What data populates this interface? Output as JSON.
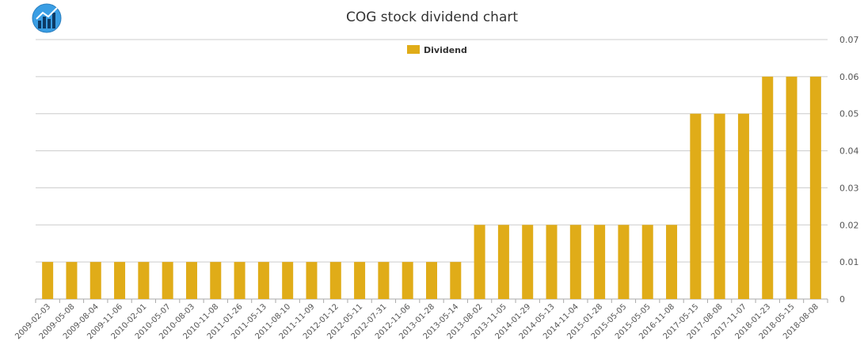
{
  "title": "COG stock dividend chart",
  "logo_icon": "chart-logo-icon",
  "colors": {
    "bar": "#E0AC18",
    "grid": "#cccccc",
    "axis": "#aaaaaa"
  },
  "chart_data": {
    "type": "bar",
    "title": "COG stock dividend chart",
    "xlabel": "",
    "ylabel": "",
    "ylim": [
      0,
      0.07
    ],
    "yticks": [
      "0",
      "0.01",
      "0.02",
      "0.03",
      "0.04",
      "0.05",
      "0.06",
      "0.07"
    ],
    "grid": true,
    "legend_position": "top-center",
    "categories": [
      "2009-02-03",
      "2009-05-08",
      "2009-08-04",
      "2009-11-06",
      "2010-02-01",
      "2010-05-07",
      "2010-08-03",
      "2010-11-08",
      "2011-01-26",
      "2011-05-13",
      "2011-08-10",
      "2011-11-09",
      "2012-01-12",
      "2012-05-11",
      "2012-07-31",
      "2012-11-06",
      "2013-01-28",
      "2013-05-14",
      "2013-08-02",
      "2013-11-05",
      "2014-01-29",
      "2014-05-13",
      "2014-11-04",
      "2015-01-28",
      "2015-05-05",
      "2015-05-05",
      "2016-11-08",
      "2017-05-15",
      "2017-08-08",
      "2017-11-07",
      "2018-01-23",
      "2018-05-15",
      "2018-08-08"
    ],
    "series": [
      {
        "name": "Dividend",
        "values": [
          0.01,
          0.01,
          0.01,
          0.01,
          0.01,
          0.01,
          0.01,
          0.01,
          0.01,
          0.01,
          0.01,
          0.01,
          0.01,
          0.01,
          0.01,
          0.01,
          0.01,
          0.01,
          0.02,
          0.02,
          0.02,
          0.02,
          0.02,
          0.02,
          0.02,
          0.02,
          0.02,
          0.05,
          0.05,
          0.05,
          0.06,
          0.06,
          0.06
        ]
      }
    ]
  }
}
